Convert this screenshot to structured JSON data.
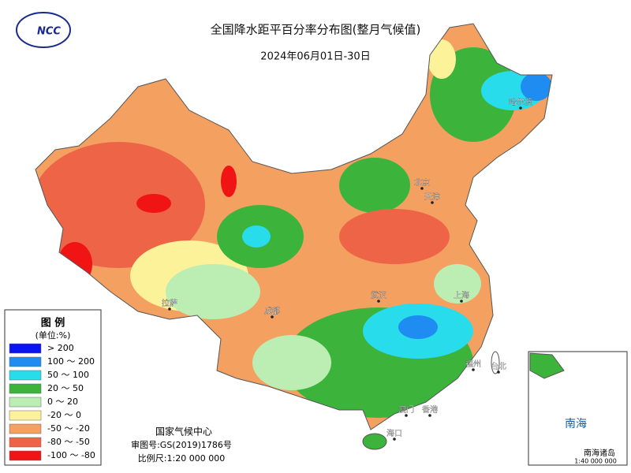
{
  "header": {
    "title": "全国降水距平百分率分布图(整月气候值)",
    "date": "2024年06月01日-30日",
    "logo": "NCC"
  },
  "legend": {
    "title": "图 例",
    "unit": "(单位:%)",
    "items": [
      {
        "label": "> 200",
        "color": "#0a14f0"
      },
      {
        "label": "100 ～ 200",
        "color": "#1e8cf0"
      },
      {
        "label": "50 ～ 100",
        "color": "#28dcec"
      },
      {
        "label": "20 ～ 50",
        "color": "#3cb43c"
      },
      {
        "label": "0 ～ 20",
        "color": "#bceeb4"
      },
      {
        "label": "-20 ～ 0",
        "color": "#fcf29a"
      },
      {
        "label": "-50 ～ -20",
        "color": "#f4a060"
      },
      {
        "label": "-80 ～ -50",
        "color": "#ee6446"
      },
      {
        "label": "-100 ～ -80",
        "color": "#f01414"
      }
    ]
  },
  "footer": {
    "agency": "国家气候中心",
    "approval": "审图号:GS(2019)1786号",
    "scale": "比例尺:1:20 000 000"
  },
  "inset": {
    "sea": "南海",
    "islands": "南海诸岛",
    "scale": "1:40 000 000"
  },
  "labels": [
    "哈尔滨",
    "北京",
    "天津",
    "拉萨",
    "成都",
    "武汉",
    "上海",
    "福州",
    "台北",
    "香港",
    "澳门",
    "海口"
  ]
}
